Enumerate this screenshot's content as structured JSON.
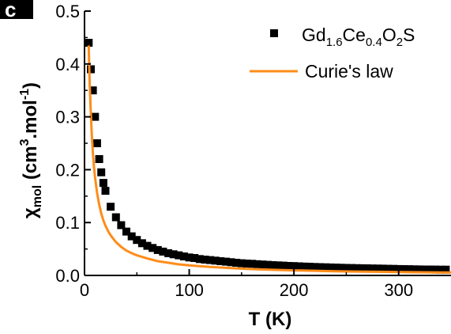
{
  "panel_label": "c",
  "chart_data": {
    "type": "scatter",
    "title": "",
    "xlabel": "T (K)",
    "ylabel": {
      "symbol": "χ",
      "sub": "mol",
      "unit_prefix": "(cm",
      "sup1": "3",
      "unit_mid": ".mol",
      "sup2": "-1",
      "unit_suffix": ")"
    },
    "xlim": [
      0,
      350
    ],
    "ylim": [
      0,
      0.5
    ],
    "xticks": [
      "0",
      "100",
      "200",
      "300"
    ],
    "yticks": [
      "0.0",
      "0.1",
      "0.2",
      "0.3",
      "0.4",
      "0.5"
    ],
    "legend_position": "top-right",
    "series": [
      {
        "name": {
          "base": "Gd",
          "s1": "1.6",
          "el2": "Ce",
          "s2": "0.4",
          "el3": "O",
          "s3": "2",
          "el4": "S"
        },
        "kind": "marker",
        "marker": "square",
        "color": "#000000",
        "x": [
          4,
          6,
          8,
          10,
          12,
          14,
          16,
          18,
          20,
          25,
          30,
          35,
          40,
          45,
          50,
          55,
          60,
          65,
          70,
          75,
          80,
          85,
          90,
          95,
          100,
          105,
          110,
          115,
          120,
          125,
          130,
          135,
          140,
          145,
          150,
          155,
          160,
          165,
          170,
          175,
          180,
          185,
          190,
          195,
          200,
          205,
          210,
          215,
          220,
          225,
          230,
          235,
          240,
          245,
          250,
          255,
          260,
          265,
          270,
          275,
          280,
          285,
          290,
          295,
          300,
          305,
          310,
          315,
          320,
          325,
          330,
          335,
          340,
          345
        ],
        "y": [
          0.44,
          0.39,
          0.35,
          0.3,
          0.25,
          0.22,
          0.195,
          0.175,
          0.16,
          0.13,
          0.11,
          0.095,
          0.083,
          0.074,
          0.067,
          0.061,
          0.056,
          0.052,
          0.048,
          0.045,
          0.042,
          0.04,
          0.038,
          0.036,
          0.034,
          0.033,
          0.031,
          0.03,
          0.029,
          0.028,
          0.027,
          0.026,
          0.025,
          0.024,
          0.023,
          0.0225,
          0.022,
          0.0212,
          0.0206,
          0.02,
          0.0195,
          0.019,
          0.0185,
          0.018,
          0.0176,
          0.0172,
          0.0168,
          0.0164,
          0.016,
          0.0157,
          0.0154,
          0.0151,
          0.0148,
          0.0145,
          0.0142,
          0.014,
          0.0138,
          0.0136,
          0.0134,
          0.0132,
          0.013,
          0.0128,
          0.0126,
          0.0124,
          0.0122,
          0.012,
          0.0118,
          0.0116,
          0.0114,
          0.0113,
          0.0112,
          0.0111,
          0.011,
          0.0109
        ]
      },
      {
        "name": "Curie's law",
        "kind": "line",
        "color": "#ff8c1a",
        "x": [
          4,
          5,
          6,
          7,
          8,
          9,
          10,
          12,
          14,
          16,
          18,
          20,
          23,
          26,
          30,
          35,
          40,
          45,
          50,
          60,
          70,
          80,
          90,
          100,
          120,
          140,
          160,
          180,
          200,
          220,
          240,
          260,
          280,
          300,
          320,
          340,
          350
        ],
        "y": [
          0.435,
          0.36,
          0.306,
          0.264,
          0.232,
          0.207,
          0.186,
          0.156,
          0.134,
          0.117,
          0.104,
          0.094,
          0.082,
          0.073,
          0.063,
          0.054,
          0.047,
          0.042,
          0.038,
          0.032,
          0.027,
          0.024,
          0.021,
          0.019,
          0.016,
          0.0137,
          0.012,
          0.0107,
          0.0096,
          0.0088,
          0.008,
          0.0074,
          0.0069,
          0.0064,
          0.006,
          0.0056,
          0.0055
        ]
      }
    ]
  }
}
